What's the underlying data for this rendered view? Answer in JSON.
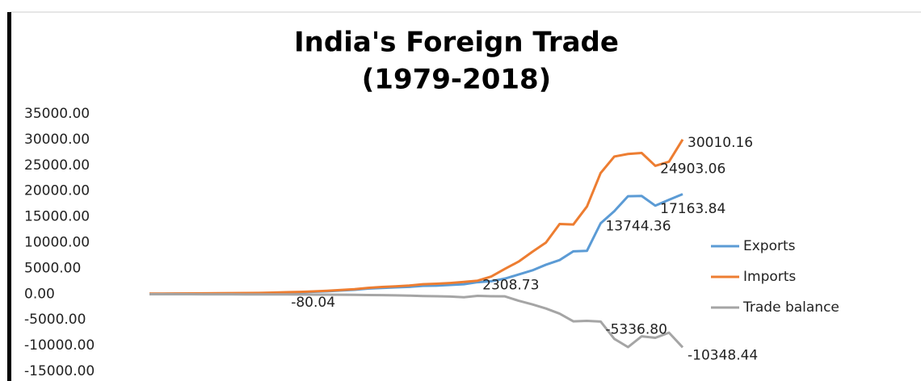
{
  "chart_data": {
    "type": "line",
    "title": [
      "India's Foreign Trade",
      "(1979-2018)"
    ],
    "series": [
      {
        "name": "Exports",
        "color": "#5b9bd5",
        "values": [
          64,
          67,
          78,
          88,
          97,
          111,
          109,
          124,
          157,
          202,
          277,
          326,
          440,
          536,
          697,
          826,
          1063,
          1188,
          1301,
          1398,
          1598,
          1637,
          1762,
          1903,
          2308.73,
          2500,
          3000,
          3800,
          4600,
          5700,
          6600,
          8300,
          8400,
          13744.36,
          16100,
          19000,
          19050,
          17163.84,
          18300,
          19400
        ],
        "value_labels": [
          null,
          null,
          null,
          null,
          null,
          null,
          null,
          null,
          null,
          null,
          null,
          null,
          null,
          null,
          null,
          null,
          null,
          null,
          null,
          null,
          null,
          null,
          null,
          null,
          "2308.73",
          null,
          null,
          null,
          null,
          null,
          null,
          null,
          null,
          "13744.36",
          null,
          null,
          null,
          "17163.84",
          null,
          null
        ]
      },
      {
        "name": "Imports",
        "color": "#ed7d31",
        "values": [
          90,
          95,
          110,
          125,
          140,
          160,
          180,
          200,
          230,
          280,
          360,
          420,
          520,
          640,
          800,
          950,
          1200,
          1380,
          1500,
          1650,
          1900,
          2000,
          2150,
          2350,
          2600,
          3400,
          4900,
          6300,
          8200,
          10000,
          13600,
          13500,
          17000,
          23500,
          26700,
          27200,
          27400,
          24903.06,
          25700,
          30010.16
        ],
        "value_labels": [
          null,
          null,
          null,
          null,
          null,
          null,
          null,
          null,
          null,
          null,
          null,
          null,
          null,
          null,
          null,
          null,
          null,
          null,
          null,
          null,
          null,
          null,
          null,
          null,
          null,
          null,
          null,
          null,
          null,
          null,
          null,
          null,
          null,
          null,
          null,
          null,
          null,
          "24903.06",
          null,
          "30010.16"
        ]
      },
      {
        "name": "Trade balance",
        "color": "#a5a5a5",
        "values": [
          -26,
          -23,
          -30,
          -40,
          -45,
          -50,
          -60,
          -70,
          -70,
          -75,
          -80.04,
          -90,
          -100,
          -110,
          -120,
          -150,
          -180,
          -200,
          -250,
          -300,
          -380,
          -430,
          -480,
          -620,
          -350,
          -420,
          -450,
          -1300,
          -2000,
          -2800,
          -3800,
          -5300,
          -5200,
          -5336.8,
          -8700,
          -10300,
          -8200,
          -8500,
          -7500,
          -10348.44
        ],
        "value_labels": [
          null,
          null,
          null,
          null,
          null,
          null,
          null,
          null,
          null,
          null,
          "-80.04",
          null,
          null,
          null,
          null,
          null,
          null,
          null,
          null,
          null,
          null,
          null,
          null,
          null,
          null,
          null,
          null,
          null,
          null,
          null,
          null,
          null,
          null,
          "-5336.80",
          null,
          null,
          null,
          null,
          null,
          "-10348.44"
        ]
      }
    ],
    "ylim": [
      -15000,
      35000
    ],
    "yticks": [
      {
        "value": -15000,
        "label": "-15000.00"
      },
      {
        "value": -10000,
        "label": "-10000.00"
      },
      {
        "value": -5000,
        "label": "-5000.00"
      },
      {
        "value": 0,
        "label": "0.00"
      },
      {
        "value": 5000,
        "label": "5000.00"
      },
      {
        "value": 10000,
        "label": "10000.00"
      },
      {
        "value": 15000,
        "label": "15000.00"
      },
      {
        "value": 20000,
        "label": "20000.00"
      },
      {
        "value": 25000,
        "label": "25000.00"
      },
      {
        "value": 30000,
        "label": "30000.00"
      },
      {
        "value": 35000,
        "label": "35000.00"
      }
    ],
    "grid": false,
    "legend": "right"
  }
}
